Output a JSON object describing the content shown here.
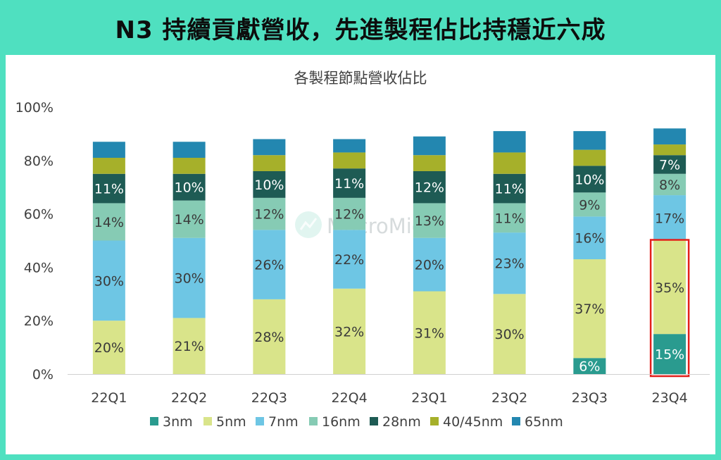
{
  "banner": {
    "title": "N3 持續貢獻營收，先進製程佔比持穩近六成"
  },
  "watermark": "MacroMicro",
  "colors": {
    "3nm": "#2a9b8f",
    "5nm": "#d9e48a",
    "7nm": "#6ec6e4",
    "16nm": "#86cbb4",
    "28nm": "#1e5b54",
    "40/45nm": "#a6b02a",
    "65nm": "#2387b0",
    "highlight": "#e3201b"
  },
  "chart_data": {
    "type": "bar",
    "stacked": true,
    "title": "各製程節點營收佔比",
    "categories": [
      "22Q1",
      "22Q2",
      "22Q3",
      "22Q4",
      "23Q1",
      "23Q2",
      "23Q3",
      "23Q4"
    ],
    "ylim": [
      0,
      100
    ],
    "y_ticks": [
      "0%",
      "20%",
      "40%",
      "60%",
      "80%",
      "100%"
    ],
    "legend_position": "bottom",
    "series": [
      {
        "name": "3nm",
        "values": [
          0,
          0,
          0,
          0,
          0,
          0,
          6,
          15
        ],
        "labels": [
          "",
          "",
          "",
          "",
          "",
          "",
          "6%",
          "15%"
        ]
      },
      {
        "name": "5nm",
        "values": [
          20,
          21,
          28,
          32,
          31,
          30,
          37,
          35
        ],
        "labels": [
          "20%",
          "21%",
          "28%",
          "32%",
          "31%",
          "30%",
          "37%",
          "35%"
        ]
      },
      {
        "name": "7nm",
        "values": [
          30,
          30,
          26,
          22,
          20,
          23,
          16,
          17
        ],
        "labels": [
          "30%",
          "30%",
          "26%",
          "22%",
          "20%",
          "23%",
          "16%",
          "17%"
        ]
      },
      {
        "name": "16nm",
        "values": [
          14,
          14,
          12,
          12,
          13,
          11,
          9,
          8
        ],
        "labels": [
          "14%",
          "14%",
          "12%",
          "12%",
          "13%",
          "11%",
          "9%",
          "8%"
        ]
      },
      {
        "name": "28nm",
        "values": [
          11,
          10,
          10,
          11,
          12,
          11,
          10,
          7
        ],
        "labels": [
          "11%",
          "10%",
          "10%",
          "11%",
          "12%",
          "11%",
          "10%",
          "7%"
        ]
      },
      {
        "name": "40/45nm",
        "values": [
          6,
          6,
          6,
          6,
          6,
          8,
          6,
          4
        ],
        "labels": [
          "",
          "",
          "",
          "",
          "",
          "",
          "",
          ""
        ]
      },
      {
        "name": "65nm",
        "values": [
          6,
          6,
          6,
          5,
          7,
          8,
          7,
          6
        ],
        "labels": [
          "",
          "",
          "",
          "",
          "",
          "",
          "",
          ""
        ]
      }
    ],
    "highlight": {
      "category": "23Q4",
      "series": [
        "3nm",
        "5nm"
      ]
    }
  }
}
